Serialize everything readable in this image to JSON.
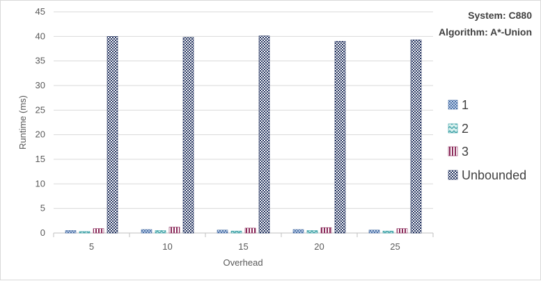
{
  "chart_data": {
    "type": "bar",
    "title": "",
    "xlabel": "Overhead",
    "ylabel": "Runtime (ms)",
    "categories": [
      "5",
      "10",
      "15",
      "20",
      "25"
    ],
    "ylim": [
      0,
      45
    ],
    "yticks": [
      0,
      5,
      10,
      15,
      20,
      25,
      30,
      35,
      40,
      45
    ],
    "grid": "horizontal",
    "legend_position": "right",
    "annotations": [
      "System: C880",
      "Algorithm: A*-Union"
    ],
    "series": [
      {
        "name": "1",
        "values": [
          0.5,
          0.7,
          0.6,
          0.7,
          0.6
        ],
        "color": "#4a6fa5",
        "pattern": "checker"
      },
      {
        "name": "2",
        "values": [
          0.3,
          0.5,
          0.4,
          0.5,
          0.4
        ],
        "color": "#2e9aa0",
        "pattern": "zigzag"
      },
      {
        "name": "3",
        "values": [
          0.9,
          1.2,
          1.0,
          1.1,
          0.9
        ],
        "color": "#8b2a5a",
        "pattern": "vertical-stripes"
      },
      {
        "name": "Unbounded",
        "values": [
          40.0,
          39.8,
          40.1,
          39.0,
          39.3
        ],
        "color": "#1f2f5c",
        "pattern": "dense-checker"
      }
    ]
  }
}
